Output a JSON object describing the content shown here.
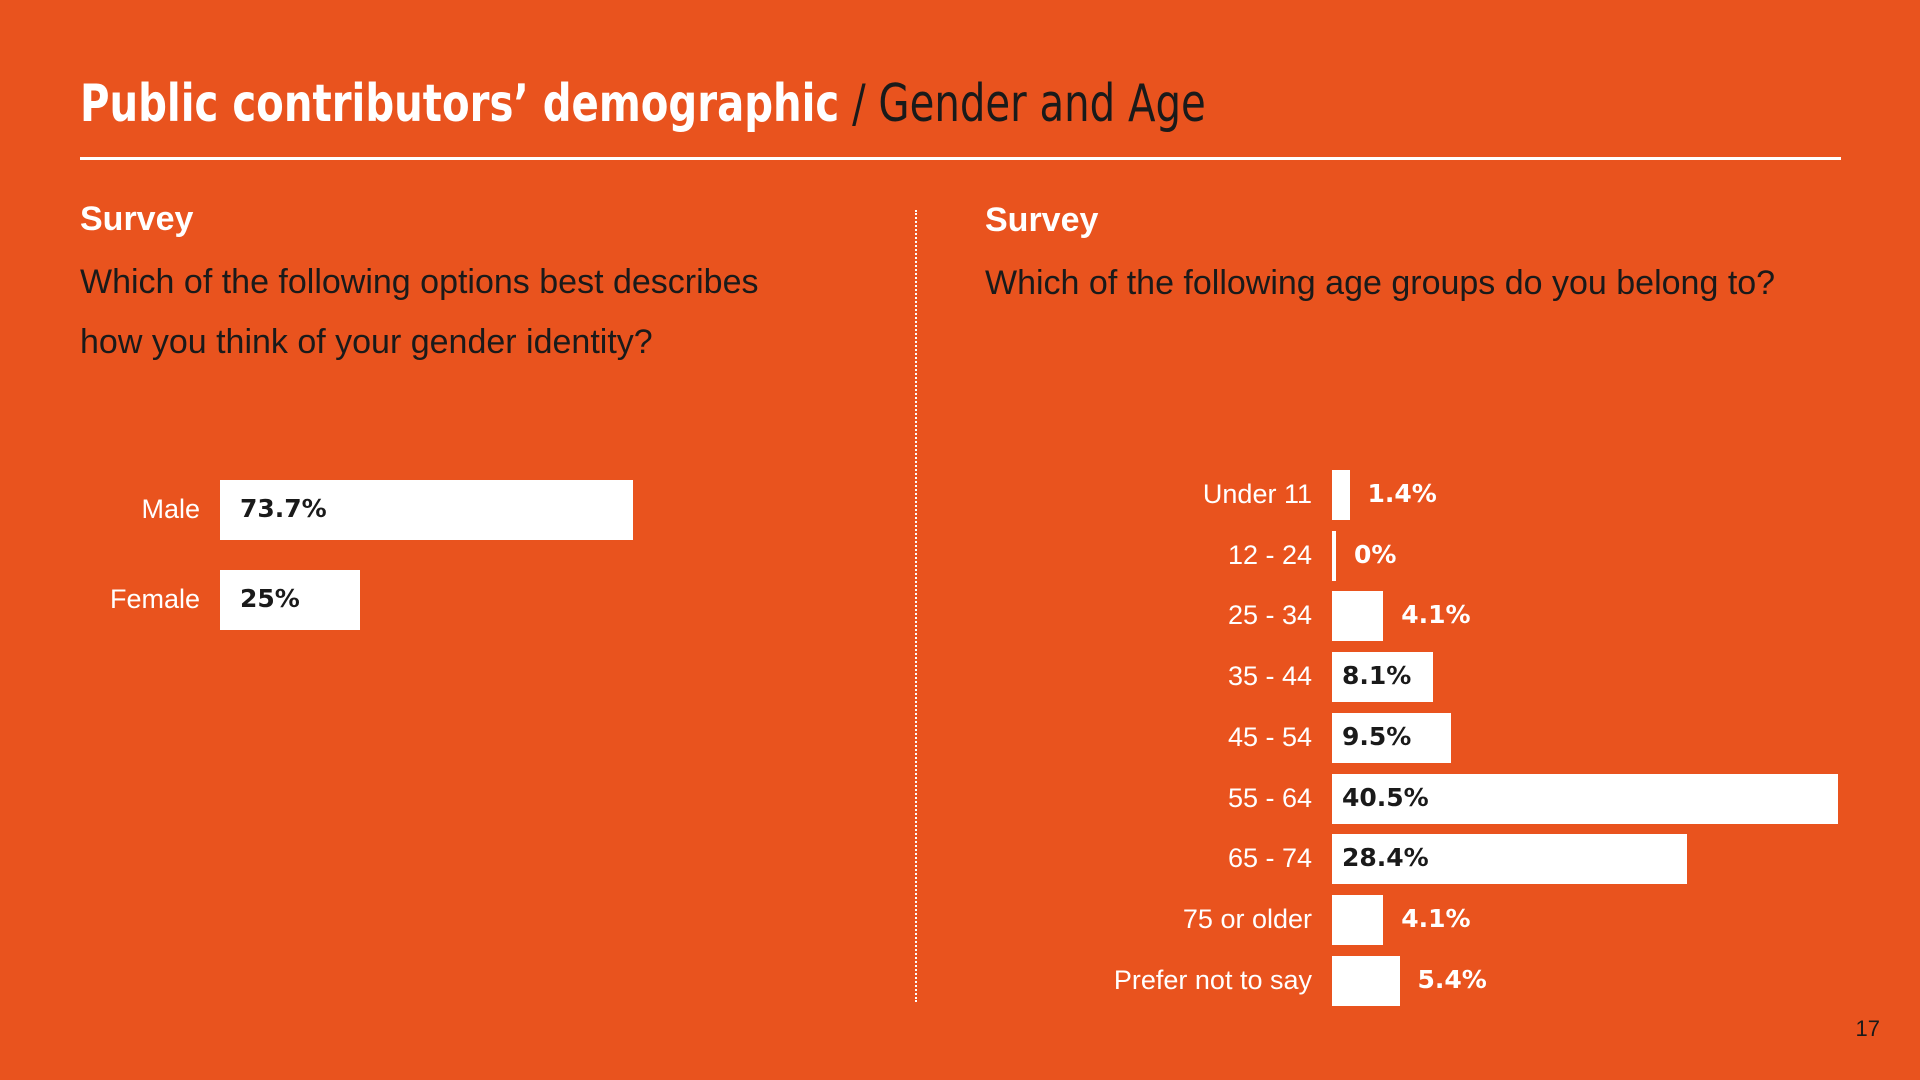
{
  "header": {
    "title_bold": "Public contributors’ demographic",
    "title_sep": "/",
    "title_light": "Gender and Age"
  },
  "left_panel": {
    "label": "Survey",
    "question_line1": "Which of the following options best describes",
    "question_line2": "how you think of your gender identity?"
  },
  "right_panel": {
    "label": "Survey",
    "question": "Which of the following age groups do you belong to?"
  },
  "page_number": "17",
  "colors": {
    "background": "#E9531E",
    "bar": "#FFFFFF",
    "text_dark": "#1A1A1A"
  },
  "chart_data": [
    {
      "type": "bar",
      "orientation": "horizontal",
      "categories": [
        "Male",
        "Female"
      ],
      "values": [
        73.7,
        25
      ],
      "value_labels": [
        "73.7%",
        "25%"
      ],
      "unit": "%",
      "grid": false
    },
    {
      "type": "bar",
      "orientation": "horizontal",
      "categories": [
        "Under 11",
        "12 - 24",
        "25 - 34",
        "35 - 44",
        "45 - 54",
        "55 - 64",
        "65 - 74",
        "75 or older",
        "Prefer not to say"
      ],
      "values": [
        1.4,
        0,
        4.1,
        8.1,
        9.5,
        40.5,
        28.4,
        4.1,
        5.4
      ],
      "value_labels": [
        "1.4%",
        "0%",
        "4.1%",
        "8.1%",
        "9.5%",
        "40.5%",
        "28.4%",
        "4.1%",
        "5.4%"
      ],
      "unit": "%",
      "grid": false
    }
  ]
}
